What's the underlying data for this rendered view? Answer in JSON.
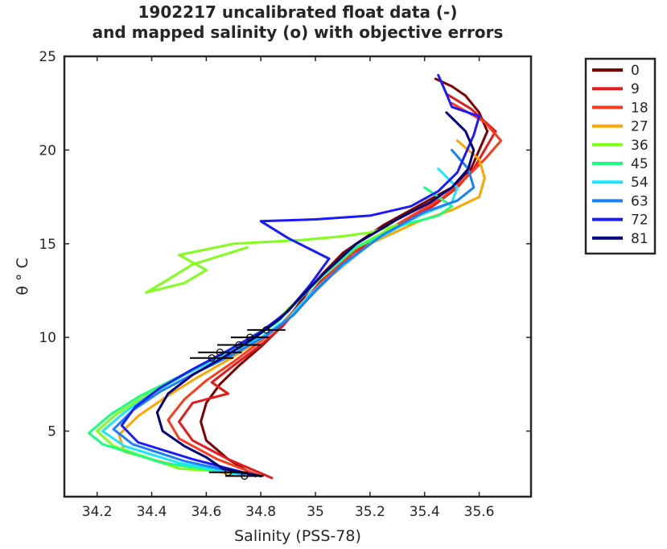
{
  "chart_data": {
    "type": "line",
    "title": [
      "1902217 uncalibrated float data (-)",
      "and mapped salinity (o) with objective errors"
    ],
    "xlabel": "Salinity (PSS-78)",
    "ylabel": "θ ° C",
    "xlim": [
      34.08,
      35.79
    ],
    "ylim": [
      1.5,
      25
    ],
    "xticks": [
      34.2,
      34.4,
      34.6,
      34.8,
      35,
      35.2,
      35.4,
      35.6
    ],
    "xtick_labels": [
      "34.2",
      "34.4",
      "34.6",
      "34.8",
      "35",
      "35.2",
      "35.4",
      "35.6"
    ],
    "yticks": [
      5,
      10,
      15,
      20,
      25
    ],
    "ytick_labels": [
      "5",
      "10",
      "15",
      "20",
      "25"
    ],
    "grid": false,
    "legend_position": "outside-right",
    "series": [
      {
        "name": "0",
        "color": "#7f0000",
        "points": [
          [
            35.44,
            23.8
          ],
          [
            35.5,
            23.4
          ],
          [
            35.55,
            22.9
          ],
          [
            35.6,
            22.0
          ],
          [
            35.63,
            21.0
          ],
          [
            35.6,
            20.0
          ],
          [
            35.57,
            19.0
          ],
          [
            35.5,
            18.0
          ],
          [
            35.4,
            17.2
          ],
          [
            35.25,
            16.0
          ],
          [
            35.1,
            14.5
          ],
          [
            35.0,
            13.0
          ],
          [
            34.93,
            11.6
          ],
          [
            34.87,
            10.5
          ],
          [
            34.8,
            9.5
          ],
          [
            34.72,
            8.5
          ],
          [
            34.65,
            7.5
          ],
          [
            34.6,
            6.5
          ],
          [
            34.58,
            5.5
          ],
          [
            34.6,
            4.5
          ],
          [
            34.68,
            3.5
          ],
          [
            34.78,
            2.6
          ]
        ]
      },
      {
        "name": "9",
        "color": "#e51a1a",
        "points": [
          [
            35.48,
            23.0
          ],
          [
            35.57,
            22.2
          ],
          [
            35.66,
            21.0
          ],
          [
            35.62,
            20.0
          ],
          [
            35.58,
            19.0
          ],
          [
            35.52,
            18.0
          ],
          [
            35.43,
            17.0
          ],
          [
            35.3,
            16.0
          ],
          [
            35.14,
            14.5
          ],
          [
            35.02,
            13.0
          ],
          [
            34.95,
            11.8
          ],
          [
            34.88,
            10.6
          ],
          [
            34.8,
            9.6
          ],
          [
            34.7,
            8.5
          ],
          [
            34.62,
            7.6
          ],
          [
            34.68,
            7.0
          ],
          [
            34.55,
            6.5
          ],
          [
            34.5,
            5.5
          ],
          [
            34.55,
            4.5
          ],
          [
            34.68,
            3.5
          ],
          [
            34.84,
            2.5
          ]
        ]
      },
      {
        "name": "18",
        "color": "#ff3a1a",
        "points": [
          [
            35.5,
            22.5
          ],
          [
            35.62,
            21.5
          ],
          [
            35.68,
            20.5
          ],
          [
            35.62,
            19.5
          ],
          [
            35.55,
            18.5
          ],
          [
            35.47,
            17.5
          ],
          [
            35.33,
            16.3
          ],
          [
            35.16,
            14.8
          ],
          [
            35.04,
            13.2
          ],
          [
            34.96,
            12.0
          ],
          [
            34.88,
            10.8
          ],
          [
            34.8,
            9.8
          ],
          [
            34.7,
            8.7
          ],
          [
            34.6,
            7.7
          ],
          [
            34.52,
            6.7
          ],
          [
            34.46,
            5.6
          ],
          [
            34.5,
            4.6
          ],
          [
            34.64,
            3.5
          ],
          [
            34.8,
            2.6
          ]
        ]
      },
      {
        "name": "27",
        "color": "#ffa500",
        "points": [
          [
            35.52,
            20.5
          ],
          [
            35.6,
            19.5
          ],
          [
            35.62,
            18.5
          ],
          [
            35.6,
            17.5
          ],
          [
            35.5,
            16.8
          ],
          [
            35.38,
            16.2
          ],
          [
            35.2,
            15.0
          ],
          [
            35.06,
            13.3
          ],
          [
            34.97,
            12.0
          ],
          [
            34.89,
            10.9
          ],
          [
            34.8,
            9.9
          ],
          [
            34.68,
            8.8
          ],
          [
            34.56,
            7.8
          ],
          [
            34.45,
            6.8
          ],
          [
            34.35,
            5.8
          ],
          [
            34.28,
            4.8
          ],
          [
            34.3,
            3.9
          ],
          [
            34.45,
            3.3
          ],
          [
            34.7,
            2.7
          ]
        ]
      },
      {
        "name": "36",
        "color": "#80ff1a",
        "points": [
          [
            34.75,
            14.8
          ],
          [
            34.55,
            13.9
          ],
          [
            34.45,
            13.0
          ],
          [
            34.38,
            12.4
          ],
          [
            34.52,
            12.9
          ],
          [
            34.6,
            13.6
          ],
          [
            34.5,
            14.4
          ],
          [
            34.7,
            15.0
          ],
          [
            34.95,
            15.2
          ],
          [
            35.1,
            15.4
          ],
          [
            35.2,
            15.6
          ],
          [
            35.3,
            16.0
          ],
          [
            35.12,
            14.6
          ],
          [
            35.0,
            13.0
          ],
          [
            34.92,
            11.8
          ],
          [
            34.85,
            10.8
          ],
          [
            34.75,
            9.9
          ],
          [
            34.63,
            8.9
          ],
          [
            34.5,
            7.9
          ],
          [
            34.38,
            6.9
          ],
          [
            34.27,
            5.9
          ],
          [
            34.2,
            5.0
          ],
          [
            34.26,
            4.2
          ],
          [
            34.5,
            3.0
          ],
          [
            34.7,
            2.8
          ]
        ]
      },
      {
        "name": "45",
        "color": "#1aff80",
        "points": [
          [
            35.4,
            18.0
          ],
          [
            35.5,
            17.0
          ],
          [
            35.45,
            16.5
          ],
          [
            35.32,
            16.0
          ],
          [
            35.15,
            14.8
          ],
          [
            35.02,
            13.2
          ],
          [
            34.94,
            12.0
          ],
          [
            34.86,
            10.8
          ],
          [
            34.76,
            9.9
          ],
          [
            34.64,
            8.9
          ],
          [
            34.5,
            7.9
          ],
          [
            34.36,
            6.9
          ],
          [
            34.25,
            5.9
          ],
          [
            34.17,
            4.9
          ],
          [
            34.22,
            4.3
          ],
          [
            34.44,
            3.3
          ],
          [
            34.68,
            2.8
          ]
        ]
      },
      {
        "name": "54",
        "color": "#1ae5ff",
        "points": [
          [
            35.45,
            19.0
          ],
          [
            35.52,
            18.0
          ],
          [
            35.5,
            17.2
          ],
          [
            35.38,
            16.5
          ],
          [
            35.22,
            15.2
          ],
          [
            35.08,
            13.6
          ],
          [
            34.98,
            12.3
          ],
          [
            34.9,
            11.0
          ],
          [
            34.8,
            10.0
          ],
          [
            34.66,
            9.0
          ],
          [
            34.52,
            8.0
          ],
          [
            34.4,
            7.0
          ],
          [
            34.3,
            6.0
          ],
          [
            34.22,
            5.0
          ],
          [
            34.3,
            4.2
          ],
          [
            34.5,
            3.3
          ],
          [
            34.72,
            2.7
          ]
        ]
      },
      {
        "name": "63",
        "color": "#1a80ff",
        "points": [
          [
            35.5,
            20.0
          ],
          [
            35.56,
            19.0
          ],
          [
            35.58,
            18.0
          ],
          [
            35.52,
            17.3
          ],
          [
            35.4,
            16.7
          ],
          [
            35.25,
            15.5
          ],
          [
            35.1,
            13.9
          ],
          [
            35.0,
            12.5
          ],
          [
            34.92,
            11.2
          ],
          [
            34.82,
            10.1
          ],
          [
            34.7,
            9.1
          ],
          [
            34.56,
            8.1
          ],
          [
            34.43,
            7.1
          ],
          [
            34.33,
            6.1
          ],
          [
            34.26,
            5.1
          ],
          [
            34.33,
            4.3
          ],
          [
            34.52,
            3.4
          ],
          [
            34.74,
            2.7
          ]
        ]
      },
      {
        "name": "72",
        "color": "#1a1aff",
        "points": [
          [
            35.45,
            24.0
          ],
          [
            35.48,
            23.0
          ],
          [
            35.5,
            22.3
          ],
          [
            35.6,
            21.8
          ],
          [
            35.58,
            20.8
          ],
          [
            35.55,
            19.8
          ],
          [
            35.52,
            18.8
          ],
          [
            35.45,
            17.8
          ],
          [
            35.35,
            17.0
          ],
          [
            35.2,
            16.5
          ],
          [
            35.0,
            16.3
          ],
          [
            34.8,
            16.2
          ],
          [
            34.9,
            15.3
          ],
          [
            35.05,
            14.2
          ],
          [
            34.98,
            12.8
          ],
          [
            34.9,
            11.4
          ],
          [
            34.8,
            10.3
          ],
          [
            34.68,
            9.3
          ],
          [
            34.55,
            8.3
          ],
          [
            34.43,
            7.3
          ],
          [
            34.34,
            6.3
          ],
          [
            34.29,
            5.3
          ],
          [
            34.35,
            4.4
          ],
          [
            34.55,
            3.5
          ],
          [
            34.76,
            2.7
          ]
        ]
      },
      {
        "name": "81",
        "color": "#00007f",
        "points": [
          [
            35.48,
            22.0
          ],
          [
            35.55,
            21.0
          ],
          [
            35.58,
            20.0
          ],
          [
            35.56,
            19.0
          ],
          [
            35.5,
            18.0
          ],
          [
            35.42,
            17.2
          ],
          [
            35.3,
            16.3
          ],
          [
            35.15,
            15.0
          ],
          [
            35.03,
            13.4
          ],
          [
            34.95,
            12.2
          ],
          [
            34.87,
            11.0
          ],
          [
            34.78,
            10.0
          ],
          [
            34.67,
            9.0
          ],
          [
            34.55,
            8.0
          ],
          [
            34.46,
            7.0
          ],
          [
            34.42,
            6.0
          ],
          [
            34.44,
            5.0
          ],
          [
            34.52,
            4.2
          ],
          [
            34.6,
            3.6
          ],
          [
            34.66,
            3.0
          ],
          [
            34.8,
            2.6
          ]
        ]
      }
    ],
    "mapped_salinity": {
      "color": "#000000",
      "points": [
        [
          34.82,
          10.4
        ],
        [
          34.76,
          10.0
        ],
        [
          34.72,
          9.6
        ],
        [
          34.65,
          9.2
        ],
        [
          34.62,
          8.9
        ],
        [
          34.68,
          2.8
        ],
        [
          34.74,
          2.6
        ]
      ],
      "errors": [
        0.07,
        0.07,
        0.08,
        0.08,
        0.08,
        0.07,
        0.07
      ]
    }
  }
}
